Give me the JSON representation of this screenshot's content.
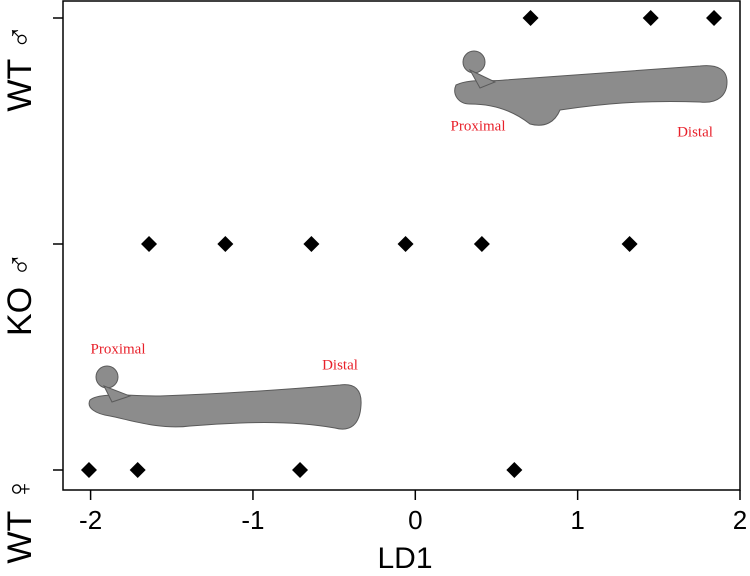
{
  "chart_data": {
    "type": "scatter",
    "xlabel": "LD1",
    "groups": [
      {
        "label": "WT ♂",
        "x": [
          0.71,
          1.45,
          1.84
        ]
      },
      {
        "label": "KO ♂",
        "x": [
          -1.64,
          -1.17,
          -0.64,
          -0.06,
          0.41,
          1.32
        ]
      },
      {
        "label": "WT ♀",
        "x": [
          -2.01,
          -1.71,
          -0.71,
          0.61
        ]
      }
    ],
    "color": "#000000",
    "xlim": [
      -2.17,
      2.0
    ],
    "xticks": [
      -2,
      -1,
      0,
      1,
      2
    ],
    "annotations": [
      "Proximal",
      "Distal",
      "Proximal",
      "Distal"
    ],
    "annotation_color": "#e8202a"
  }
}
